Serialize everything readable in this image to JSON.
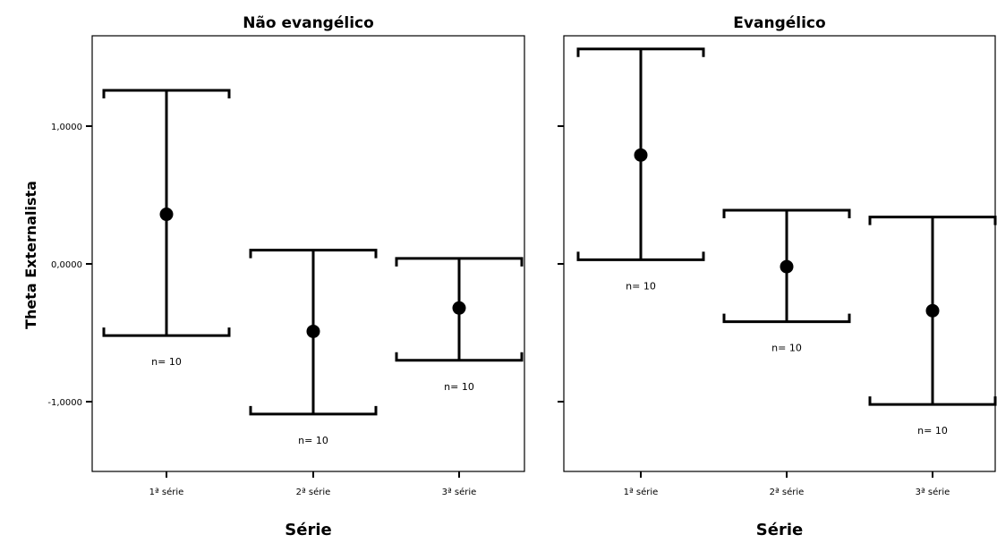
{
  "chart_data": {
    "type": "errorbar",
    "ylabel": "Theta Externalista",
    "ylim": [
      -1.5,
      1.65
    ],
    "yticks": [
      1.0,
      0.0,
      -1.0
    ],
    "ytick_labels": [
      "1,0000",
      "0,0000",
      "-1,0000"
    ],
    "categories": [
      "1ª série",
      "2ª série",
      "3ª série"
    ],
    "panels": [
      {
        "title": "Não evangélico",
        "xlabel": "Série",
        "show_ytick_labels": true,
        "points": [
          {
            "category": "1ª série",
            "mean": 0.36,
            "lower": -0.52,
            "upper": 1.26,
            "n_label": "n= 10"
          },
          {
            "category": "2ª série",
            "mean": -0.49,
            "lower": -1.09,
            "upper": 0.1,
            "n_label": "n= 10"
          },
          {
            "category": "3ª série",
            "mean": -0.32,
            "lower": -0.7,
            "upper": 0.04,
            "n_label": "n= 10"
          }
        ]
      },
      {
        "title": "Evangélico",
        "xlabel": "Série",
        "show_ytick_labels": false,
        "points": [
          {
            "category": "1ª série",
            "mean": 0.79,
            "lower": 0.03,
            "upper": 1.56,
            "n_label": "n= 10"
          },
          {
            "category": "2ª série",
            "mean": -0.02,
            "lower": -0.42,
            "upper": 0.39,
            "n_label": "n= 10"
          },
          {
            "category": "3ª série",
            "mean": -0.34,
            "lower": -1.02,
            "upper": 0.34,
            "n_label": "n= 10"
          }
        ]
      }
    ]
  }
}
